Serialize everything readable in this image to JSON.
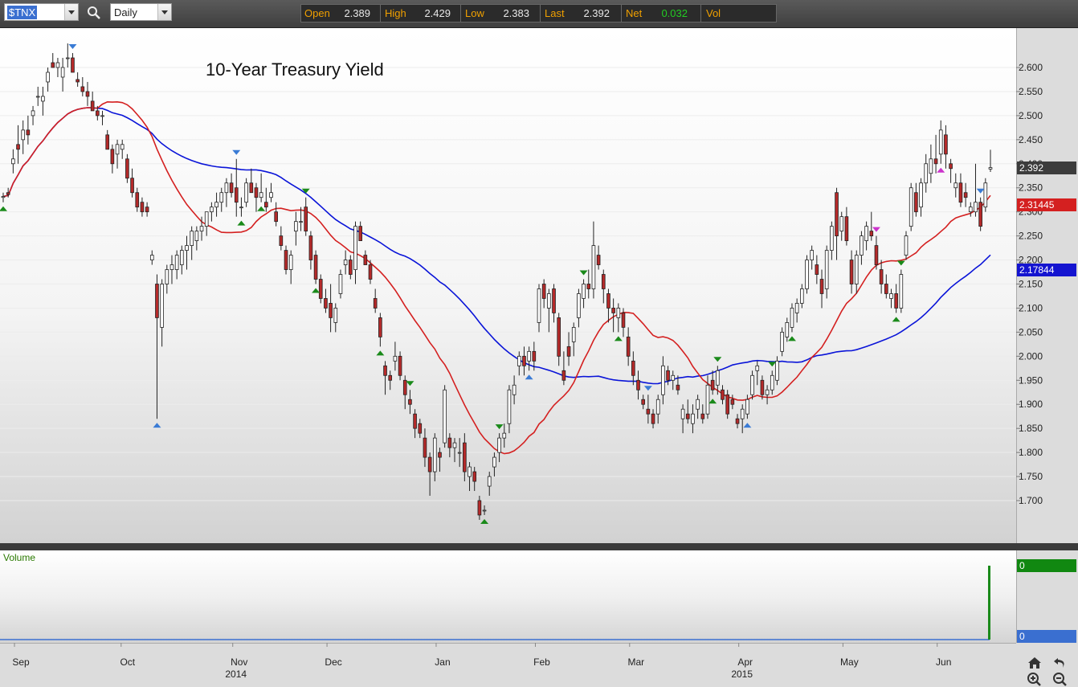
{
  "toolbar": {
    "symbol": "$TNX",
    "interval": "Daily",
    "quote": {
      "open_label": "Open",
      "open": "2.389",
      "high_label": "High",
      "high": "2.429",
      "low_label": "Low",
      "low": "2.383",
      "last_label": "Last",
      "last": "2.392",
      "net_label": "Net",
      "net": "0.032",
      "vol_label": "Vol"
    }
  },
  "chart_title": "10-Year Treasury Yield",
  "volume_label": "Volume",
  "tags": {
    "last": "2.392",
    "ma_short": "2.31445",
    "ma_long": "2.17844",
    "vol_top": "0",
    "vol_bottom": "0"
  },
  "colors": {
    "up_candle": "#ffffff",
    "down_candle": "#b52a2a",
    "ma_short": "#d42020",
    "ma_long": "#0a14d8",
    "swing_high": "#3a7bd5",
    "swing_low": "#1a8a1a",
    "swing_special": "#cc33cc",
    "volume": "#1a8a1a",
    "quote_label": "#f0a000",
    "net_positive": "#22cc22"
  },
  "chart_data": {
    "type": "candlestick",
    "title": "10-Year Treasury Yield",
    "interval": "Daily",
    "y_ticks": [
      "1.700",
      "1.750",
      "1.800",
      "1.850",
      "1.900",
      "1.950",
      "2.000",
      "2.050",
      "2.100",
      "2.150",
      "2.200",
      "2.250",
      "2.300",
      "2.350",
      "2.400",
      "2.450",
      "2.500",
      "2.550",
      "2.600"
    ],
    "ylim": [
      1.63,
      2.69
    ],
    "x_month_labels": [
      {
        "label": "Sep",
        "t": 0.0
      },
      {
        "label": "Oct",
        "t": 21.5
      },
      {
        "label": "Nov",
        "t": 44
      },
      {
        "label": "Dec",
        "t": 63
      },
      {
        "label": "Jan",
        "t": 85
      },
      {
        "label": "Feb",
        "t": 105
      },
      {
        "label": "Mar",
        "t": 124
      },
      {
        "label": "Apr",
        "t": 146
      },
      {
        "label": "May",
        "t": 167
      },
      {
        "label": "Jun",
        "t": 186
      }
    ],
    "x_year_labels": [
      {
        "label": "2014",
        "t": 44
      },
      {
        "label": "2015",
        "t": 146
      }
    ],
    "candles": [
      [
        2.33,
        2.34,
        2.32,
        2.332
      ],
      [
        2.34,
        2.35,
        2.33,
        2.336
      ],
      [
        2.4,
        2.43,
        2.38,
        2.41
      ],
      [
        2.44,
        2.48,
        2.4,
        2.43
      ],
      [
        2.45,
        2.49,
        2.42,
        2.47
      ],
      [
        2.47,
        2.5,
        2.44,
        2.46
      ],
      [
        2.5,
        2.52,
        2.48,
        2.51
      ],
      [
        2.54,
        2.56,
        2.52,
        2.54
      ],
      [
        2.53,
        2.56,
        2.5,
        2.54
      ],
      [
        2.57,
        2.6,
        2.55,
        2.59
      ],
      [
        2.61,
        2.63,
        2.6,
        2.6
      ],
      [
        2.6,
        2.62,
        2.58,
        2.61
      ],
      [
        2.58,
        2.62,
        2.55,
        2.6
      ],
      [
        2.62,
        2.65,
        2.6,
        2.62
      ],
      [
        2.62,
        2.63,
        2.59,
        2.59
      ],
      [
        2.575,
        2.59,
        2.56,
        2.57
      ],
      [
        2.56,
        2.58,
        2.54,
        2.55
      ],
      [
        2.55,
        2.57,
        2.52,
        2.54
      ],
      [
        2.53,
        2.55,
        2.51,
        2.51
      ],
      [
        2.51,
        2.52,
        2.49,
        2.5
      ],
      [
        2.5,
        2.51,
        2.48,
        2.5
      ],
      [
        2.46,
        2.47,
        2.43,
        2.43
      ],
      [
        2.43,
        2.44,
        2.38,
        2.4
      ],
      [
        2.42,
        2.45,
        2.39,
        2.44
      ],
      [
        2.43,
        2.45,
        2.41,
        2.44
      ],
      [
        2.41,
        2.42,
        2.36,
        2.37
      ],
      [
        2.37,
        2.39,
        2.33,
        2.34
      ],
      [
        2.34,
        2.35,
        2.3,
        2.31
      ],
      [
        2.32,
        2.33,
        2.29,
        2.3
      ],
      [
        2.31,
        2.32,
        2.29,
        2.3
      ],
      [
        2.2,
        2.22,
        2.19,
        2.21
      ],
      [
        2.15,
        2.17,
        1.87,
        2.08
      ],
      [
        2.06,
        2.16,
        2.02,
        2.15
      ],
      [
        2.15,
        2.19,
        2.13,
        2.18
      ],
      [
        2.18,
        2.21,
        2.15,
        2.19
      ],
      [
        2.18,
        2.22,
        2.16,
        2.21
      ],
      [
        2.19,
        2.23,
        2.17,
        2.22
      ],
      [
        2.22,
        2.25,
        2.18,
        2.23
      ],
      [
        2.23,
        2.27,
        2.2,
        2.26
      ],
      [
        2.24,
        2.27,
        2.22,
        2.26
      ],
      [
        2.26,
        2.29,
        2.24,
        2.27
      ],
      [
        2.27,
        2.3,
        2.25,
        2.3
      ],
      [
        2.3,
        2.32,
        2.28,
        2.31
      ],
      [
        2.31,
        2.34,
        2.29,
        2.32
      ],
      [
        2.32,
        2.35,
        2.3,
        2.34
      ],
      [
        2.34,
        2.37,
        2.31,
        2.36
      ],
      [
        2.36,
        2.38,
        2.33,
        2.34
      ],
      [
        2.35,
        2.41,
        2.29,
        2.32
      ],
      [
        2.31,
        2.33,
        2.29,
        2.31
      ],
      [
        2.32,
        2.37,
        2.31,
        2.36
      ],
      [
        2.36,
        2.39,
        2.34,
        2.34
      ],
      [
        2.35,
        2.36,
        2.3,
        2.33
      ],
      [
        2.33,
        2.38,
        2.32,
        2.34
      ],
      [
        2.32,
        2.35,
        2.3,
        2.31
      ],
      [
        2.33,
        2.36,
        2.32,
        2.34
      ],
      [
        2.3,
        2.32,
        2.27,
        2.28
      ],
      [
        2.25,
        2.27,
        2.22,
        2.23
      ],
      [
        2.22,
        2.23,
        2.17,
        2.18
      ],
      [
        2.18,
        2.22,
        2.15,
        2.21
      ],
      [
        2.26,
        2.3,
        2.23,
        2.28
      ],
      [
        2.28,
        2.31,
        2.26,
        2.28
      ],
      [
        2.31,
        2.33,
        2.25,
        2.26
      ],
      [
        2.25,
        2.26,
        2.18,
        2.2
      ],
      [
        2.21,
        2.22,
        2.15,
        2.16
      ],
      [
        2.16,
        2.17,
        2.11,
        2.12
      ],
      [
        2.12,
        2.14,
        2.09,
        2.1
      ],
      [
        2.11,
        2.15,
        2.05,
        2.08
      ],
      [
        2.07,
        2.11,
        2.05,
        2.1
      ],
      [
        2.13,
        2.18,
        2.12,
        2.17
      ],
      [
        2.19,
        2.22,
        2.17,
        2.2
      ],
      [
        2.2,
        2.21,
        2.16,
        2.17
      ],
      [
        2.18,
        2.28,
        2.15,
        2.27
      ],
      [
        2.27,
        2.28,
        2.24,
        2.24
      ],
      [
        2.21,
        2.22,
        2.19,
        2.19
      ],
      [
        2.19,
        2.2,
        2.15,
        2.16
      ],
      [
        2.12,
        2.14,
        2.09,
        2.1
      ],
      [
        2.08,
        2.09,
        2.02,
        2.04
      ],
      [
        1.98,
        1.99,
        1.92,
        1.96
      ],
      [
        1.96,
        1.97,
        1.93,
        1.95
      ],
      [
        1.99,
        2.03,
        1.97,
        2.0
      ],
      [
        2.0,
        2.01,
        1.95,
        1.96
      ],
      [
        1.95,
        1.96,
        1.89,
        1.92
      ],
      [
        1.91,
        1.93,
        1.88,
        1.9
      ],
      [
        1.88,
        1.89,
        1.83,
        1.85
      ],
      [
        1.86,
        1.87,
        1.83,
        1.84
      ],
      [
        1.83,
        1.85,
        1.77,
        1.79
      ],
      [
        1.79,
        1.8,
        1.71,
        1.76
      ],
      [
        1.76,
        1.84,
        1.74,
        1.83
      ],
      [
        1.8,
        1.81,
        1.76,
        1.79
      ],
      [
        1.82,
        1.94,
        1.81,
        1.93
      ],
      [
        1.83,
        1.84,
        1.79,
        1.81
      ],
      [
        1.81,
        1.83,
        1.78,
        1.82
      ],
      [
        1.8,
        1.83,
        1.77,
        1.8
      ],
      [
        1.82,
        1.84,
        1.74,
        1.76
      ],
      [
        1.75,
        1.78,
        1.72,
        1.77
      ],
      [
        1.76,
        1.77,
        1.72,
        1.74
      ],
      [
        1.7,
        1.71,
        1.66,
        1.67
      ],
      [
        1.68,
        1.69,
        1.67,
        1.68
      ],
      [
        1.73,
        1.76,
        1.71,
        1.75
      ],
      [
        1.77,
        1.8,
        1.75,
        1.79
      ],
      [
        1.8,
        1.84,
        1.78,
        1.83
      ],
      [
        1.83,
        1.86,
        1.81,
        1.84
      ],
      [
        1.86,
        1.94,
        1.84,
        1.93
      ],
      [
        1.92,
        1.96,
        1.9,
        1.94
      ],
      [
        1.98,
        2.01,
        1.96,
        2.0
      ],
      [
        2.0,
        2.02,
        1.96,
        1.98
      ],
      [
        1.99,
        2.02,
        1.97,
        2.01
      ],
      [
        2.01,
        2.03,
        1.97,
        1.99
      ],
      [
        2.07,
        2.15,
        2.05,
        2.14
      ],
      [
        2.15,
        2.16,
        2.1,
        2.12
      ],
      [
        2.1,
        2.14,
        2.05,
        2.13
      ],
      [
        2.14,
        2.15,
        2.07,
        2.09
      ],
      [
        2.08,
        2.09,
        1.98,
        2.0
      ],
      [
        1.97,
        2.01,
        1.94,
        1.95
      ],
      [
        2.02,
        2.05,
        1.98,
        2.0
      ],
      [
        2.03,
        2.07,
        2.0,
        2.06
      ],
      [
        2.08,
        2.14,
        2.06,
        2.13
      ],
      [
        2.12,
        2.16,
        2.1,
        2.15
      ],
      [
        2.15,
        2.18,
        2.12,
        2.14
      ],
      [
        2.14,
        2.28,
        2.12,
        2.23
      ],
      [
        2.21,
        2.23,
        2.18,
        2.19
      ],
      [
        2.17,
        2.18,
        2.11,
        2.14
      ],
      [
        2.13,
        2.14,
        2.07,
        2.1
      ],
      [
        2.1,
        2.12,
        2.05,
        2.09
      ],
      [
        2.08,
        2.11,
        2.05,
        2.1
      ],
      [
        2.09,
        2.1,
        2.04,
        2.06
      ],
      [
        2.04,
        2.06,
        1.98,
        2.0
      ],
      [
        1.99,
        2.01,
        1.94,
        1.96
      ],
      [
        1.95,
        1.97,
        1.91,
        1.93
      ],
      [
        1.91,
        1.92,
        1.89,
        1.9
      ],
      [
        1.89,
        1.92,
        1.86,
        1.88
      ],
      [
        1.88,
        1.89,
        1.85,
        1.86
      ],
      [
        1.88,
        1.92,
        1.86,
        1.91
      ],
      [
        1.92,
        2.0,
        1.9,
        1.98
      ],
      [
        1.97,
        1.98,
        1.94,
        1.95
      ],
      [
        1.95,
        1.97,
        1.93,
        1.96
      ],
      [
        1.94,
        1.96,
        1.92,
        1.93
      ],
      [
        1.87,
        1.9,
        1.84,
        1.89
      ],
      [
        1.88,
        1.91,
        1.86,
        1.87
      ],
      [
        1.86,
        1.9,
        1.84,
        1.88
      ],
      [
        1.89,
        1.92,
        1.87,
        1.91
      ],
      [
        1.88,
        1.9,
        1.86,
        1.87
      ],
      [
        1.88,
        1.96,
        1.87,
        1.94
      ],
      [
        1.95,
        1.97,
        1.92,
        1.93
      ],
      [
        1.94,
        1.98,
        1.92,
        1.97
      ],
      [
        1.93,
        1.94,
        1.9,
        1.91
      ],
      [
        1.92,
        1.93,
        1.87,
        1.88
      ],
      [
        1.91,
        1.92,
        1.89,
        1.9
      ],
      [
        1.87,
        1.88,
        1.85,
        1.86
      ],
      [
        1.87,
        1.9,
        1.84,
        1.89
      ],
      [
        1.88,
        1.92,
        1.87,
        1.91
      ],
      [
        1.92,
        1.97,
        1.91,
        1.96
      ],
      [
        1.97,
        1.99,
        1.94,
        1.98
      ],
      [
        1.95,
        1.96,
        1.91,
        1.92
      ],
      [
        1.92,
        1.94,
        1.9,
        1.93
      ],
      [
        1.93,
        1.97,
        1.92,
        1.96
      ],
      [
        1.95,
        2.0,
        1.94,
        1.99
      ],
      [
        2.01,
        2.06,
        2.0,
        2.05
      ],
      [
        2.04,
        2.08,
        2.03,
        2.07
      ],
      [
        2.06,
        2.11,
        2.05,
        2.1
      ],
      [
        2.09,
        2.12,
        2.07,
        2.11
      ],
      [
        2.11,
        2.15,
        2.1,
        2.14
      ],
      [
        2.14,
        2.21,
        2.13,
        2.2
      ],
      [
        2.2,
        2.23,
        2.18,
        2.22
      ],
      [
        2.19,
        2.21,
        2.15,
        2.17
      ],
      [
        2.16,
        2.18,
        2.1,
        2.13
      ],
      [
        2.14,
        2.23,
        2.12,
        2.22
      ],
      [
        2.22,
        2.28,
        2.2,
        2.27
      ],
      [
        2.34,
        2.35,
        2.2,
        2.25
      ],
      [
        2.26,
        2.3,
        2.24,
        2.29
      ],
      [
        2.29,
        2.31,
        2.23,
        2.24
      ],
      [
        2.2,
        2.22,
        2.13,
        2.15
      ],
      [
        2.15,
        2.22,
        2.13,
        2.21
      ],
      [
        2.21,
        2.26,
        2.19,
        2.25
      ],
      [
        2.24,
        2.28,
        2.22,
        2.27
      ],
      [
        2.26,
        2.3,
        2.24,
        2.25
      ],
      [
        2.23,
        2.25,
        2.18,
        2.19
      ],
      [
        2.18,
        2.2,
        2.13,
        2.15
      ],
      [
        2.15,
        2.17,
        2.12,
        2.13
      ],
      [
        2.12,
        2.14,
        2.1,
        2.13
      ],
      [
        2.13,
        2.15,
        2.09,
        2.1
      ],
      [
        2.1,
        2.18,
        2.09,
        2.17
      ],
      [
        2.21,
        2.26,
        2.2,
        2.25
      ],
      [
        2.27,
        2.36,
        2.26,
        2.35
      ],
      [
        2.34,
        2.36,
        2.29,
        2.3
      ],
      [
        2.31,
        2.37,
        2.29,
        2.36
      ],
      [
        2.36,
        2.42,
        2.34,
        2.4
      ],
      [
        2.38,
        2.44,
        2.36,
        2.41
      ],
      [
        2.41,
        2.46,
        2.38,
        2.4
      ],
      [
        2.42,
        2.49,
        2.4,
        2.47
      ],
      [
        2.46,
        2.48,
        2.39,
        2.42
      ],
      [
        2.4,
        2.41,
        2.36,
        2.39
      ],
      [
        2.35,
        2.38,
        2.33,
        2.36
      ],
      [
        2.36,
        2.38,
        2.31,
        2.32
      ],
      [
        2.34,
        2.36,
        2.31,
        2.33
      ],
      [
        2.3,
        2.32,
        2.29,
        2.31
      ],
      [
        2.3,
        2.4,
        2.29,
        2.32
      ],
      [
        2.32,
        2.33,
        2.26,
        2.27
      ],
      [
        2.31,
        2.37,
        2.3,
        2.36
      ],
      [
        2.389,
        2.429,
        2.383,
        2.392
      ]
    ],
    "series": [
      {
        "name": "moving average (short)",
        "color": "#d42020",
        "last_value": 2.31445
      },
      {
        "name": "moving average (long)",
        "color": "#0a14d8",
        "last_value": 2.17844
      }
    ],
    "swing_markers": [
      {
        "t": 0,
        "type": "low"
      },
      {
        "t": 14,
        "type": "high"
      },
      {
        "t": 31,
        "type": "low",
        "color": "blue"
      },
      {
        "t": 47,
        "type": "high"
      },
      {
        "t": 48,
        "type": "low"
      },
      {
        "t": 52,
        "type": "low_top"
      },
      {
        "t": 61,
        "type": "high_green"
      },
      {
        "t": 63,
        "type": "low"
      },
      {
        "t": 76,
        "type": "low"
      },
      {
        "t": 82,
        "type": "high_green"
      },
      {
        "t": 97,
        "type": "low"
      },
      {
        "t": 100,
        "type": "high_green"
      },
      {
        "t": 106,
        "type": "low",
        "color": "blue"
      },
      {
        "t": 117,
        "type": "high_green"
      },
      {
        "t": 124,
        "type": "low"
      },
      {
        "t": 130,
        "type": "high"
      },
      {
        "t": 143,
        "type": "low"
      },
      {
        "t": 144,
        "type": "high_green"
      },
      {
        "t": 150,
        "type": "low",
        "color": "blue"
      },
      {
        "t": 155,
        "type": "high_green"
      },
      {
        "t": 159,
        "type": "low"
      },
      {
        "t": 176,
        "type": "high_pink"
      },
      {
        "t": 180,
        "type": "low"
      },
      {
        "t": 181,
        "type": "high_green"
      },
      {
        "t": 189,
        "type": "low_pink"
      },
      {
        "t": 197,
        "type": "high"
      },
      {
        "t": 204,
        "type": "low"
      }
    ],
    "volume": {
      "last": 0
    }
  }
}
